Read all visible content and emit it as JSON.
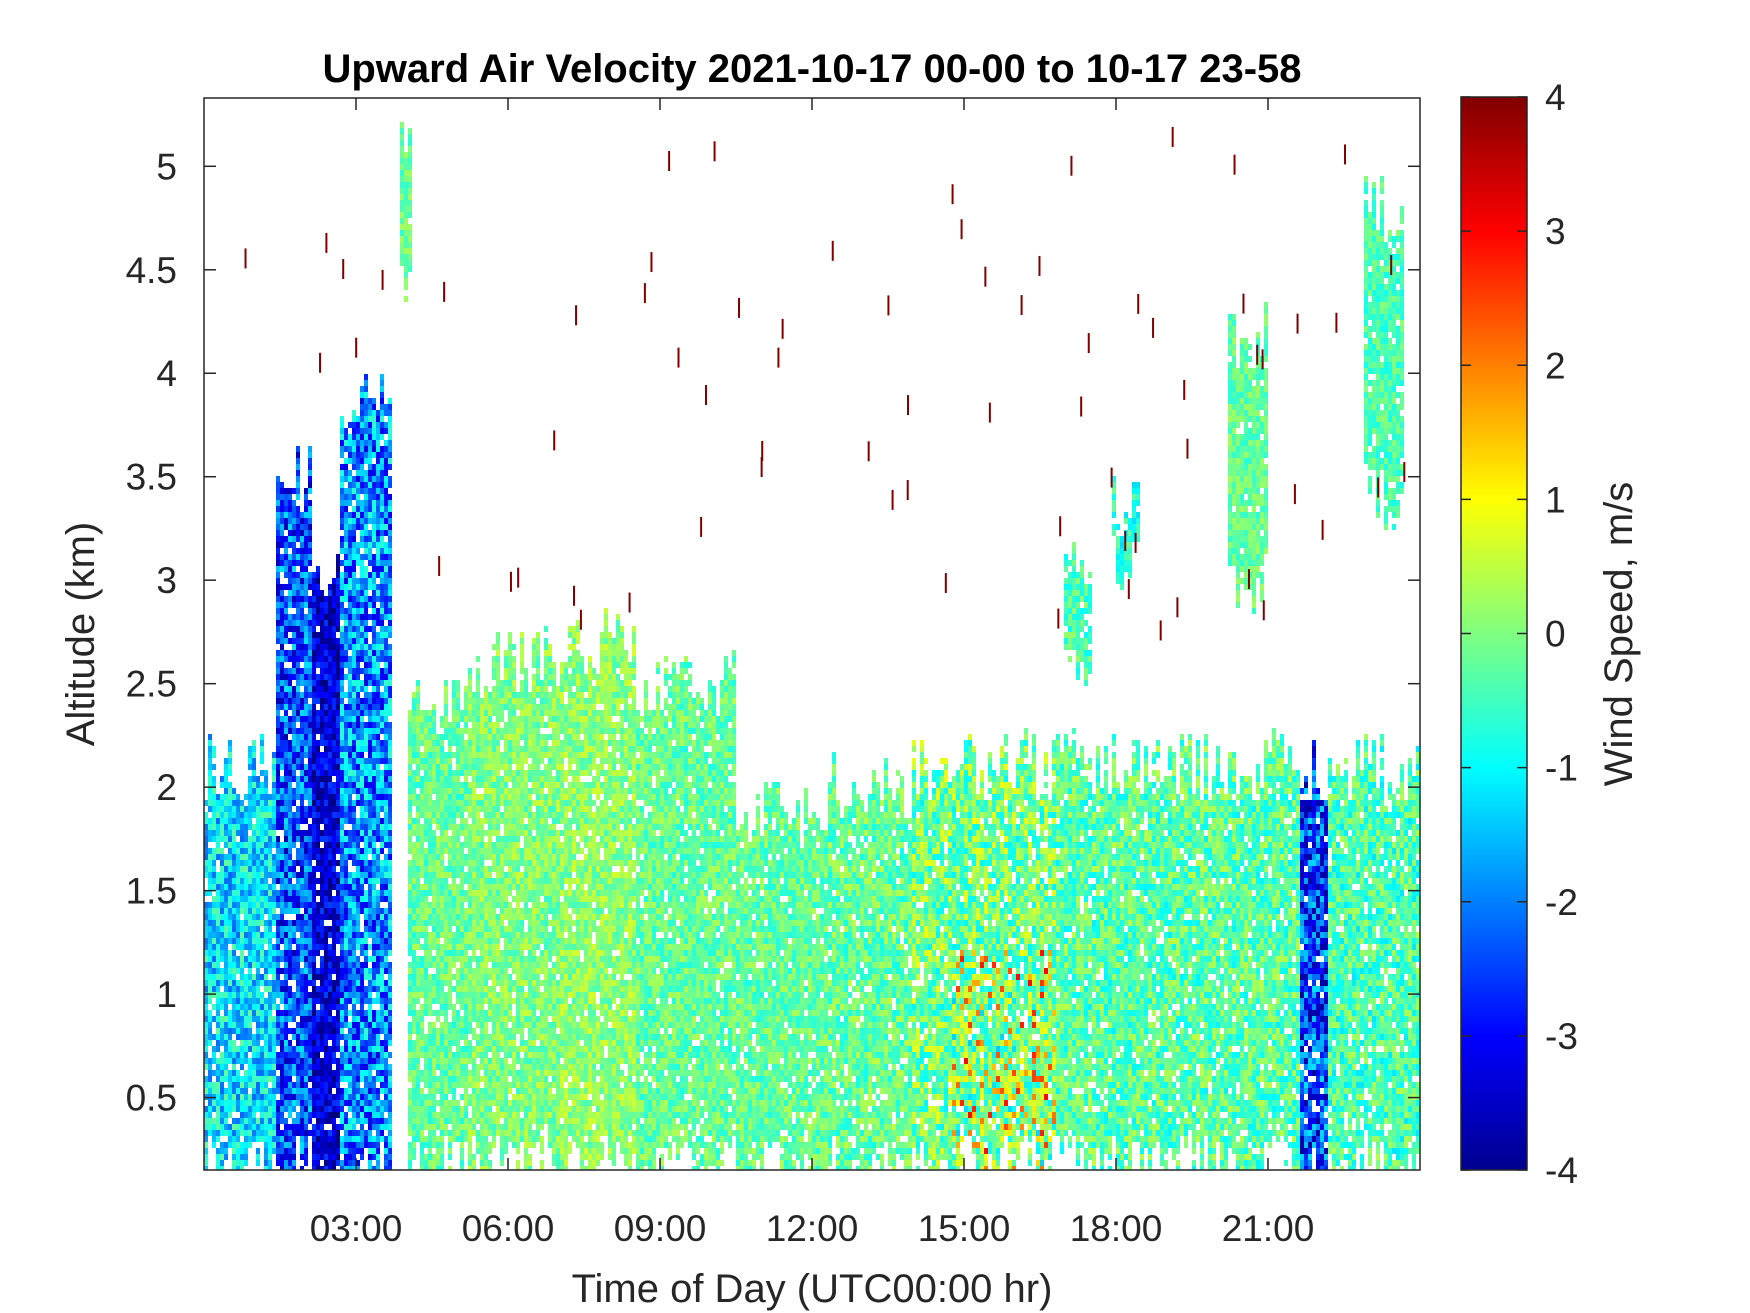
{
  "chart_data": {
    "type": "heatmap",
    "title": "Upward Air Velocity 2021-10-17 00-00 to 10-17 23-58",
    "xlabel": "Time of Day (UTC00:00 hr)",
    "ylabel": "Altitude (km)",
    "colorbar_label": "Wind Speed, m/s",
    "xlim": [
      0,
      24
    ],
    "ylim": [
      0.15,
      5.33
    ],
    "clim": [
      -4,
      4
    ],
    "colormap": "jet",
    "grid": false,
    "x_ticks": [
      {
        "value": 3,
        "label": "03:00"
      },
      {
        "value": 6,
        "label": "06:00"
      },
      {
        "value": 9,
        "label": "09:00"
      },
      {
        "value": 12,
        "label": "12:00"
      },
      {
        "value": 15,
        "label": "15:00"
      },
      {
        "value": 18,
        "label": "18:00"
      },
      {
        "value": 21,
        "label": "21:00"
      }
    ],
    "y_ticks": [
      {
        "value": 0.5,
        "label": "0.5"
      },
      {
        "value": 1,
        "label": "1"
      },
      {
        "value": 1.5,
        "label": "1.5"
      },
      {
        "value": 2,
        "label": "2"
      },
      {
        "value": 2.5,
        "label": "2.5"
      },
      {
        "value": 3,
        "label": "3"
      },
      {
        "value": 3.5,
        "label": "3.5"
      },
      {
        "value": 4,
        "label": "4"
      },
      {
        "value": 4.5,
        "label": "4.5"
      },
      {
        "value": 5,
        "label": "5"
      }
    ],
    "colorbar_ticks": [
      {
        "value": 4,
        "label": "4"
      },
      {
        "value": 3,
        "label": "3"
      },
      {
        "value": 2,
        "label": "2"
      },
      {
        "value": 1,
        "label": "1"
      },
      {
        "value": 0,
        "label": "0"
      },
      {
        "value": -1,
        "label": "-1"
      },
      {
        "value": -2,
        "label": "-2"
      },
      {
        "value": -3,
        "label": "-3"
      },
      {
        "value": -4,
        "label": "-4"
      }
    ],
    "regions": [
      {
        "t0": 0.0,
        "t1": 1.4,
        "top": 2.1,
        "mean": -1.2,
        "spread": 1.0
      },
      {
        "t0": 1.4,
        "t1": 2.1,
        "top": 3.5,
        "mean": -2.4,
        "spread": 1.2
      },
      {
        "t0": 2.1,
        "t1": 2.7,
        "top": 3.1,
        "mean": -3.3,
        "spread": 0.8
      },
      {
        "t0": 2.7,
        "t1": 3.7,
        "top": 3.9,
        "mean": -1.9,
        "spread": 1.3
      },
      {
        "t0": 3.9,
        "t1": 4.1,
        "top": 5.2,
        "bottom": 4.5,
        "mean": -0.2,
        "spread": 0.5
      },
      {
        "t0": 4.0,
        "t1": 5.2,
        "top": 2.4,
        "mean": -0.2,
        "spread": 0.6
      },
      {
        "t0": 5.2,
        "t1": 7.0,
        "top": 2.6,
        "mean": 0.0,
        "spread": 0.6
      },
      {
        "t0": 7.0,
        "t1": 8.5,
        "top": 2.7,
        "mean": 0.1,
        "spread": 0.6
      },
      {
        "t0": 8.5,
        "t1": 10.5,
        "top": 2.5,
        "mean": -0.2,
        "spread": 0.6
      },
      {
        "t0": 10.5,
        "t1": 12.3,
        "top": 1.9,
        "mean": -0.2,
        "spread": 0.6
      },
      {
        "t0": 12.3,
        "t1": 14.0,
        "top": 2.0,
        "mean": -0.2,
        "spread": 0.7
      },
      {
        "t0": 14.0,
        "t1": 16.8,
        "top": 2.1,
        "mean": -0.1,
        "spread": 1.0
      },
      {
        "t0": 16.8,
        "t1": 21.6,
        "top": 2.1,
        "mean": -0.3,
        "spread": 0.8
      },
      {
        "t0": 17.9,
        "t1": 18.5,
        "top": 3.35,
        "bottom": 3.05,
        "mean": -0.7,
        "spread": 0.6
      },
      {
        "t0": 17.0,
        "t1": 17.5,
        "top": 3.0,
        "bottom": 2.5,
        "mean": -0.4,
        "spread": 0.6
      },
      {
        "t0": 20.2,
        "t1": 21.0,
        "top": 4.2,
        "bottom": 3.0,
        "mean": -0.2,
        "spread": 0.5
      },
      {
        "t0": 21.6,
        "t1": 22.2,
        "top": 2.1,
        "mean": -2.5,
        "spread": 1.3
      },
      {
        "t0": 22.2,
        "t1": 24.0,
        "top": 2.1,
        "mean": -0.4,
        "spread": 0.8
      },
      {
        "t0": 22.9,
        "t1": 23.7,
        "top": 4.8,
        "bottom": 3.4,
        "mean": -0.4,
        "spread": 0.5
      }
    ],
    "hotspots": [
      {
        "t0": 14.8,
        "t1": 16.8,
        "top": 1.2,
        "mean": 0.8,
        "spread": 2.2
      }
    ],
    "scattered_pixels": {
      "count": 70,
      "t_range": [
        0.3,
        23.7
      ],
      "alt_range": [
        2.8,
        5.2
      ],
      "value": 4
    }
  }
}
